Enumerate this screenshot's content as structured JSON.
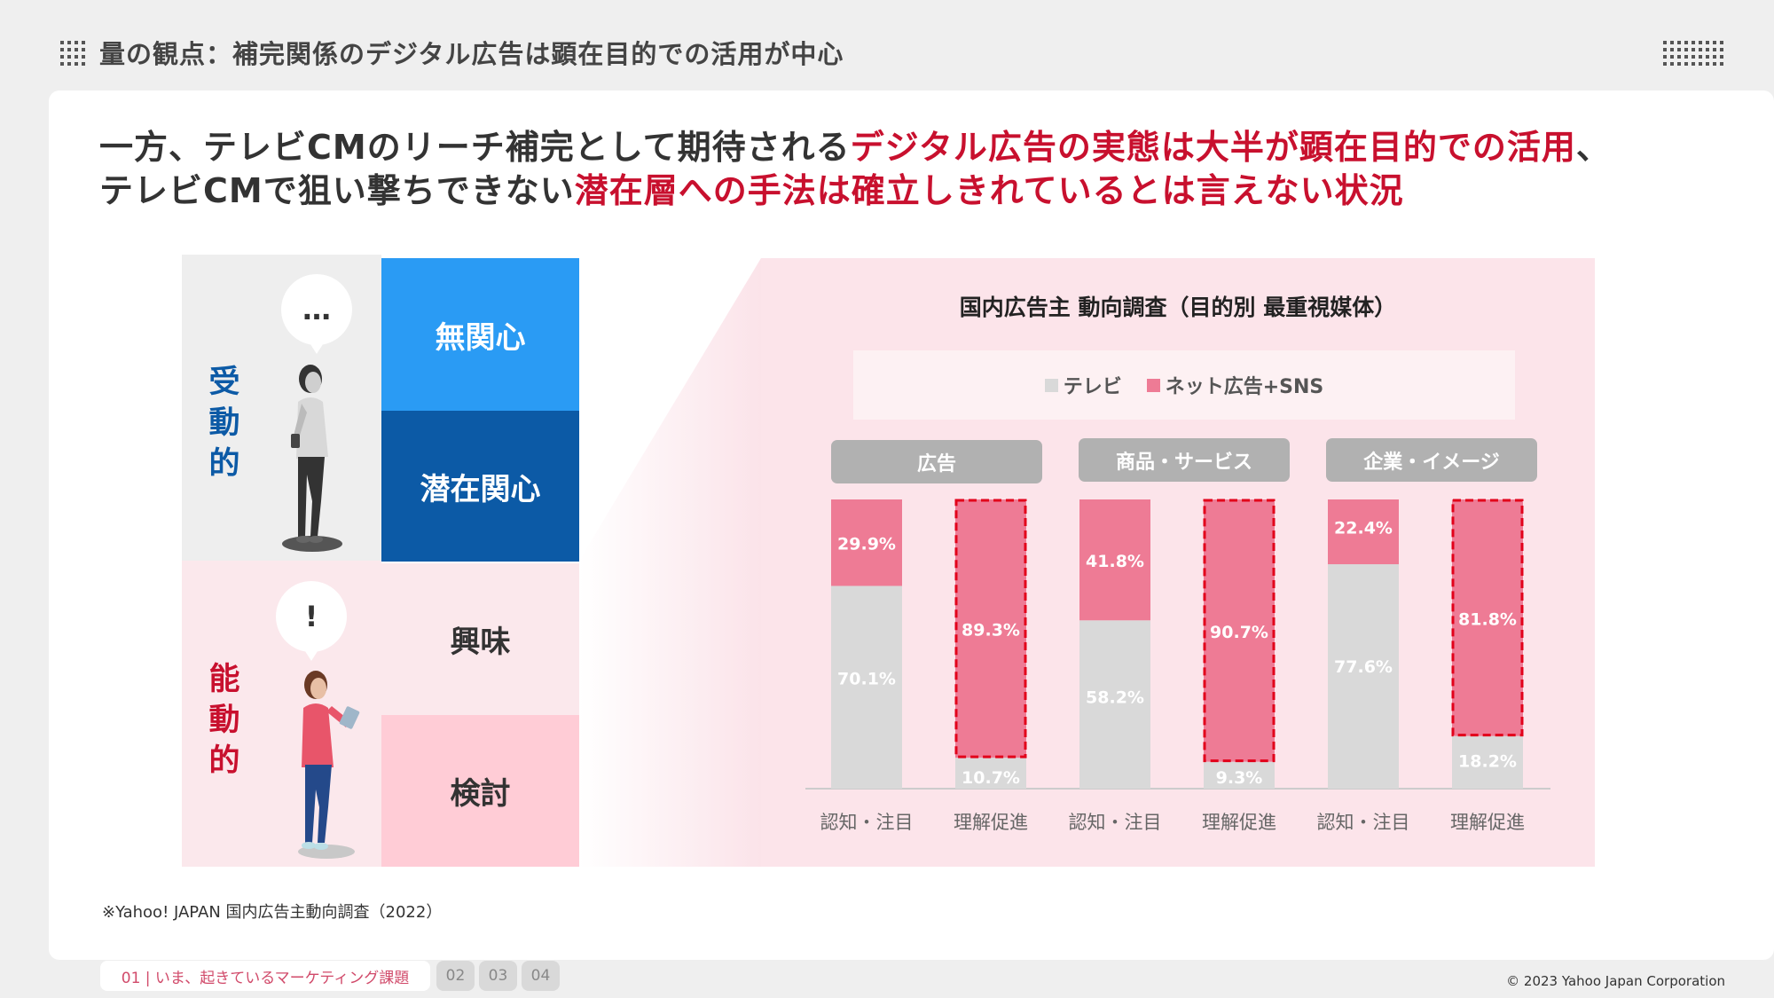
{
  "header": {
    "title": "量の観点：補完関係のデジタル広告は顕在目的での活用が中心"
  },
  "headline": {
    "line1_plain": "一方、テレビCMのリーチ補完として期待される",
    "line1_red": "デジタル広告の実態は大半が顕在目的での活用",
    "line1_end": "、",
    "line2_plain": "テレビCMで狙い撃ちできない",
    "line2_red": "潜在層への手法は確立しきれているとは言えない状況"
  },
  "funnel": {
    "passive_label": "受動的",
    "active_label": "能動的",
    "passive_bubble": "…",
    "active_bubble": "!",
    "stages": [
      "無関心",
      "潜在関心",
      "興味",
      "検討"
    ],
    "colors": {
      "passive": "#0c5aa6",
      "active": "#c8102e"
    }
  },
  "chart_data": {
    "type": "bar",
    "stacked": true,
    "percent": true,
    "title": "国内広告主 動向調査（目的別 最重視媒体）",
    "groups": [
      "広告",
      "商品・サービス",
      "企業・イメージ"
    ],
    "categories": [
      "認知・注目",
      "理解促進",
      "認知・注目",
      "理解促進",
      "認知・注目",
      "理解促進"
    ],
    "series": [
      {
        "name": "テレビ",
        "color": "#d9d9d9",
        "values": [
          70.1,
          10.7,
          58.2,
          9.3,
          77.6,
          18.2
        ]
      },
      {
        "name": "ネット広告+SNS",
        "color": "#ee7b95",
        "values": [
          29.9,
          89.3,
          41.8,
          90.7,
          22.4,
          81.8
        ]
      }
    ],
    "value_labels": {
      "tv": [
        "70.1%",
        "10.7%",
        "58.2%",
        "9.3%",
        "77.6%",
        "18.2%"
      ],
      "net": [
        "29.9%",
        "89.3%",
        "41.8%",
        "90.7%",
        "22.4%",
        "81.8%"
      ]
    },
    "highlighted": [
      false,
      true,
      false,
      true,
      false,
      true
    ],
    "legend": {
      "tv": "テレビ",
      "net": "ネット広告+SNS",
      "placement": "top"
    },
    "ylim": [
      0,
      100
    ]
  },
  "footnote": "※Yahoo! JAPAN 国内広告主動向調査（2022）",
  "footer": {
    "tabs": [
      "01 | いま、起きているマーケティング課題",
      "02",
      "03",
      "04"
    ],
    "copyright": "© 2023 Yahoo Japan Corporation"
  }
}
